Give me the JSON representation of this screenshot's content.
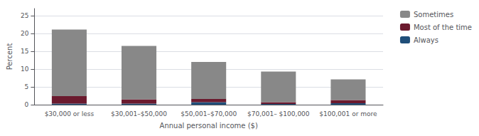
{
  "chart_data": {
    "type": "bar",
    "stacked": true,
    "categories": [
      "$30,000 or less",
      "$30,001–$50,000",
      "$50,001–$70,000",
      "$70,001– $100,000",
      "$100,001 or more"
    ],
    "series": [
      {
        "name": "Sometimes",
        "color": "#888888",
        "values": [
          18.7,
          15.0,
          10.4,
          8.6,
          5.8
        ]
      },
      {
        "name": "Most of the time",
        "color": "#6b1a2e",
        "values": [
          2.1,
          1.2,
          0.9,
          0.5,
          0.9
        ]
      },
      {
        "name": "Always",
        "color": "#1f4e79",
        "values": [
          0.3,
          0.3,
          0.7,
          0.2,
          0.4
        ]
      }
    ],
    "xlabel": "Annual personal income ($)",
    "ylabel": "Percent",
    "ylim": [
      0,
      27
    ],
    "yticks": [
      0,
      5,
      10,
      15,
      20,
      25
    ],
    "grid": true,
    "legend": "right"
  }
}
